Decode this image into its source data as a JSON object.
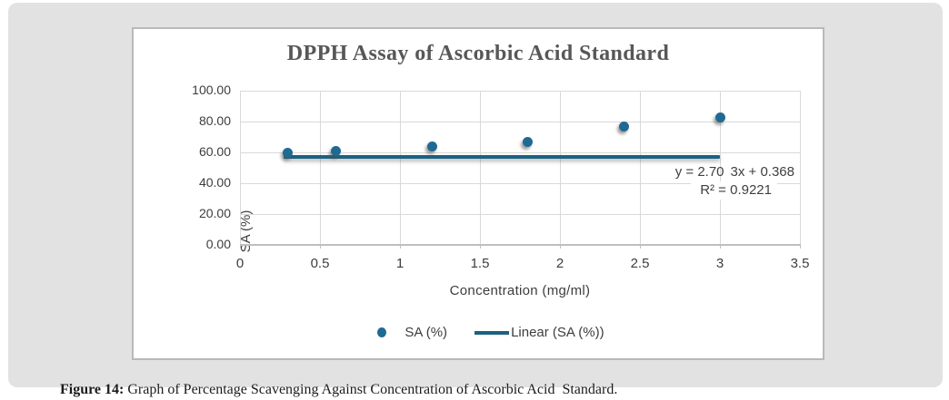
{
  "figure": {
    "caption_label": "Figure 14:",
    "caption_text": " Graph of Percentage Scavenging Against Concentration of Ascorbic Acid  Standard."
  },
  "chart_data": {
    "type": "scatter",
    "title": "DPPH Assay of Ascorbic Acid Standard",
    "xlabel": "Concentration (mg/ml)",
    "ylabel": "SA (%)",
    "xlim": [
      0,
      3.5
    ],
    "ylim": [
      0,
      100
    ],
    "grid": true,
    "legend_position": "bottom",
    "x_ticks": [
      {
        "v": 0,
        "label": "0"
      },
      {
        "v": 0.5,
        "label": "0.5"
      },
      {
        "v": 1,
        "label": "1"
      },
      {
        "v": 1.5,
        "label": "1.5"
      },
      {
        "v": 2,
        "label": "2"
      },
      {
        "v": 2.5,
        "label": "2.5"
      },
      {
        "v": 3,
        "label": "3"
      },
      {
        "v": 3.5,
        "label": "3.5"
      }
    ],
    "y_ticks": [
      {
        "v": 100,
        "label": "100.00"
      },
      {
        "v": 80,
        "label": "80.00"
      },
      {
        "v": 60,
        "label": "60.00"
      },
      {
        "v": 40,
        "label": "40.00"
      },
      {
        "v": 20,
        "label": "20.00"
      },
      {
        "v": 0,
        "label": "0.00"
      }
    ],
    "series": [
      {
        "name": "SA (%)",
        "points": [
          {
            "x": 0.3,
            "y": 59.5
          },
          {
            "x": 0.6,
            "y": 61.0
          },
          {
            "x": 1.2,
            "y": 64.0
          },
          {
            "x": 1.8,
            "y": 67.0
          },
          {
            "x": 2.4,
            "y": 76.5
          },
          {
            "x": 3.0,
            "y": 82.5
          }
        ]
      }
    ],
    "trendline": {
      "name": "Linear  (SA (%))",
      "equation_left": "y = 2.70",
      "equation_right": "3x + 0.368",
      "r_squared": "R² = 0.9221",
      "drawn_from_x": 0.27,
      "drawn_to_x": 3.0,
      "drawn_at_y": 57.3
    },
    "colors": {
      "marker": "#1f6a93",
      "trendline": "#1d6181",
      "gridline": "#d9d9d9",
      "axis_line": "#bfbfbf",
      "title_text": "#575757",
      "tick_text": "#3d3d3d",
      "panel_background": "#e2e2e2"
    }
  }
}
